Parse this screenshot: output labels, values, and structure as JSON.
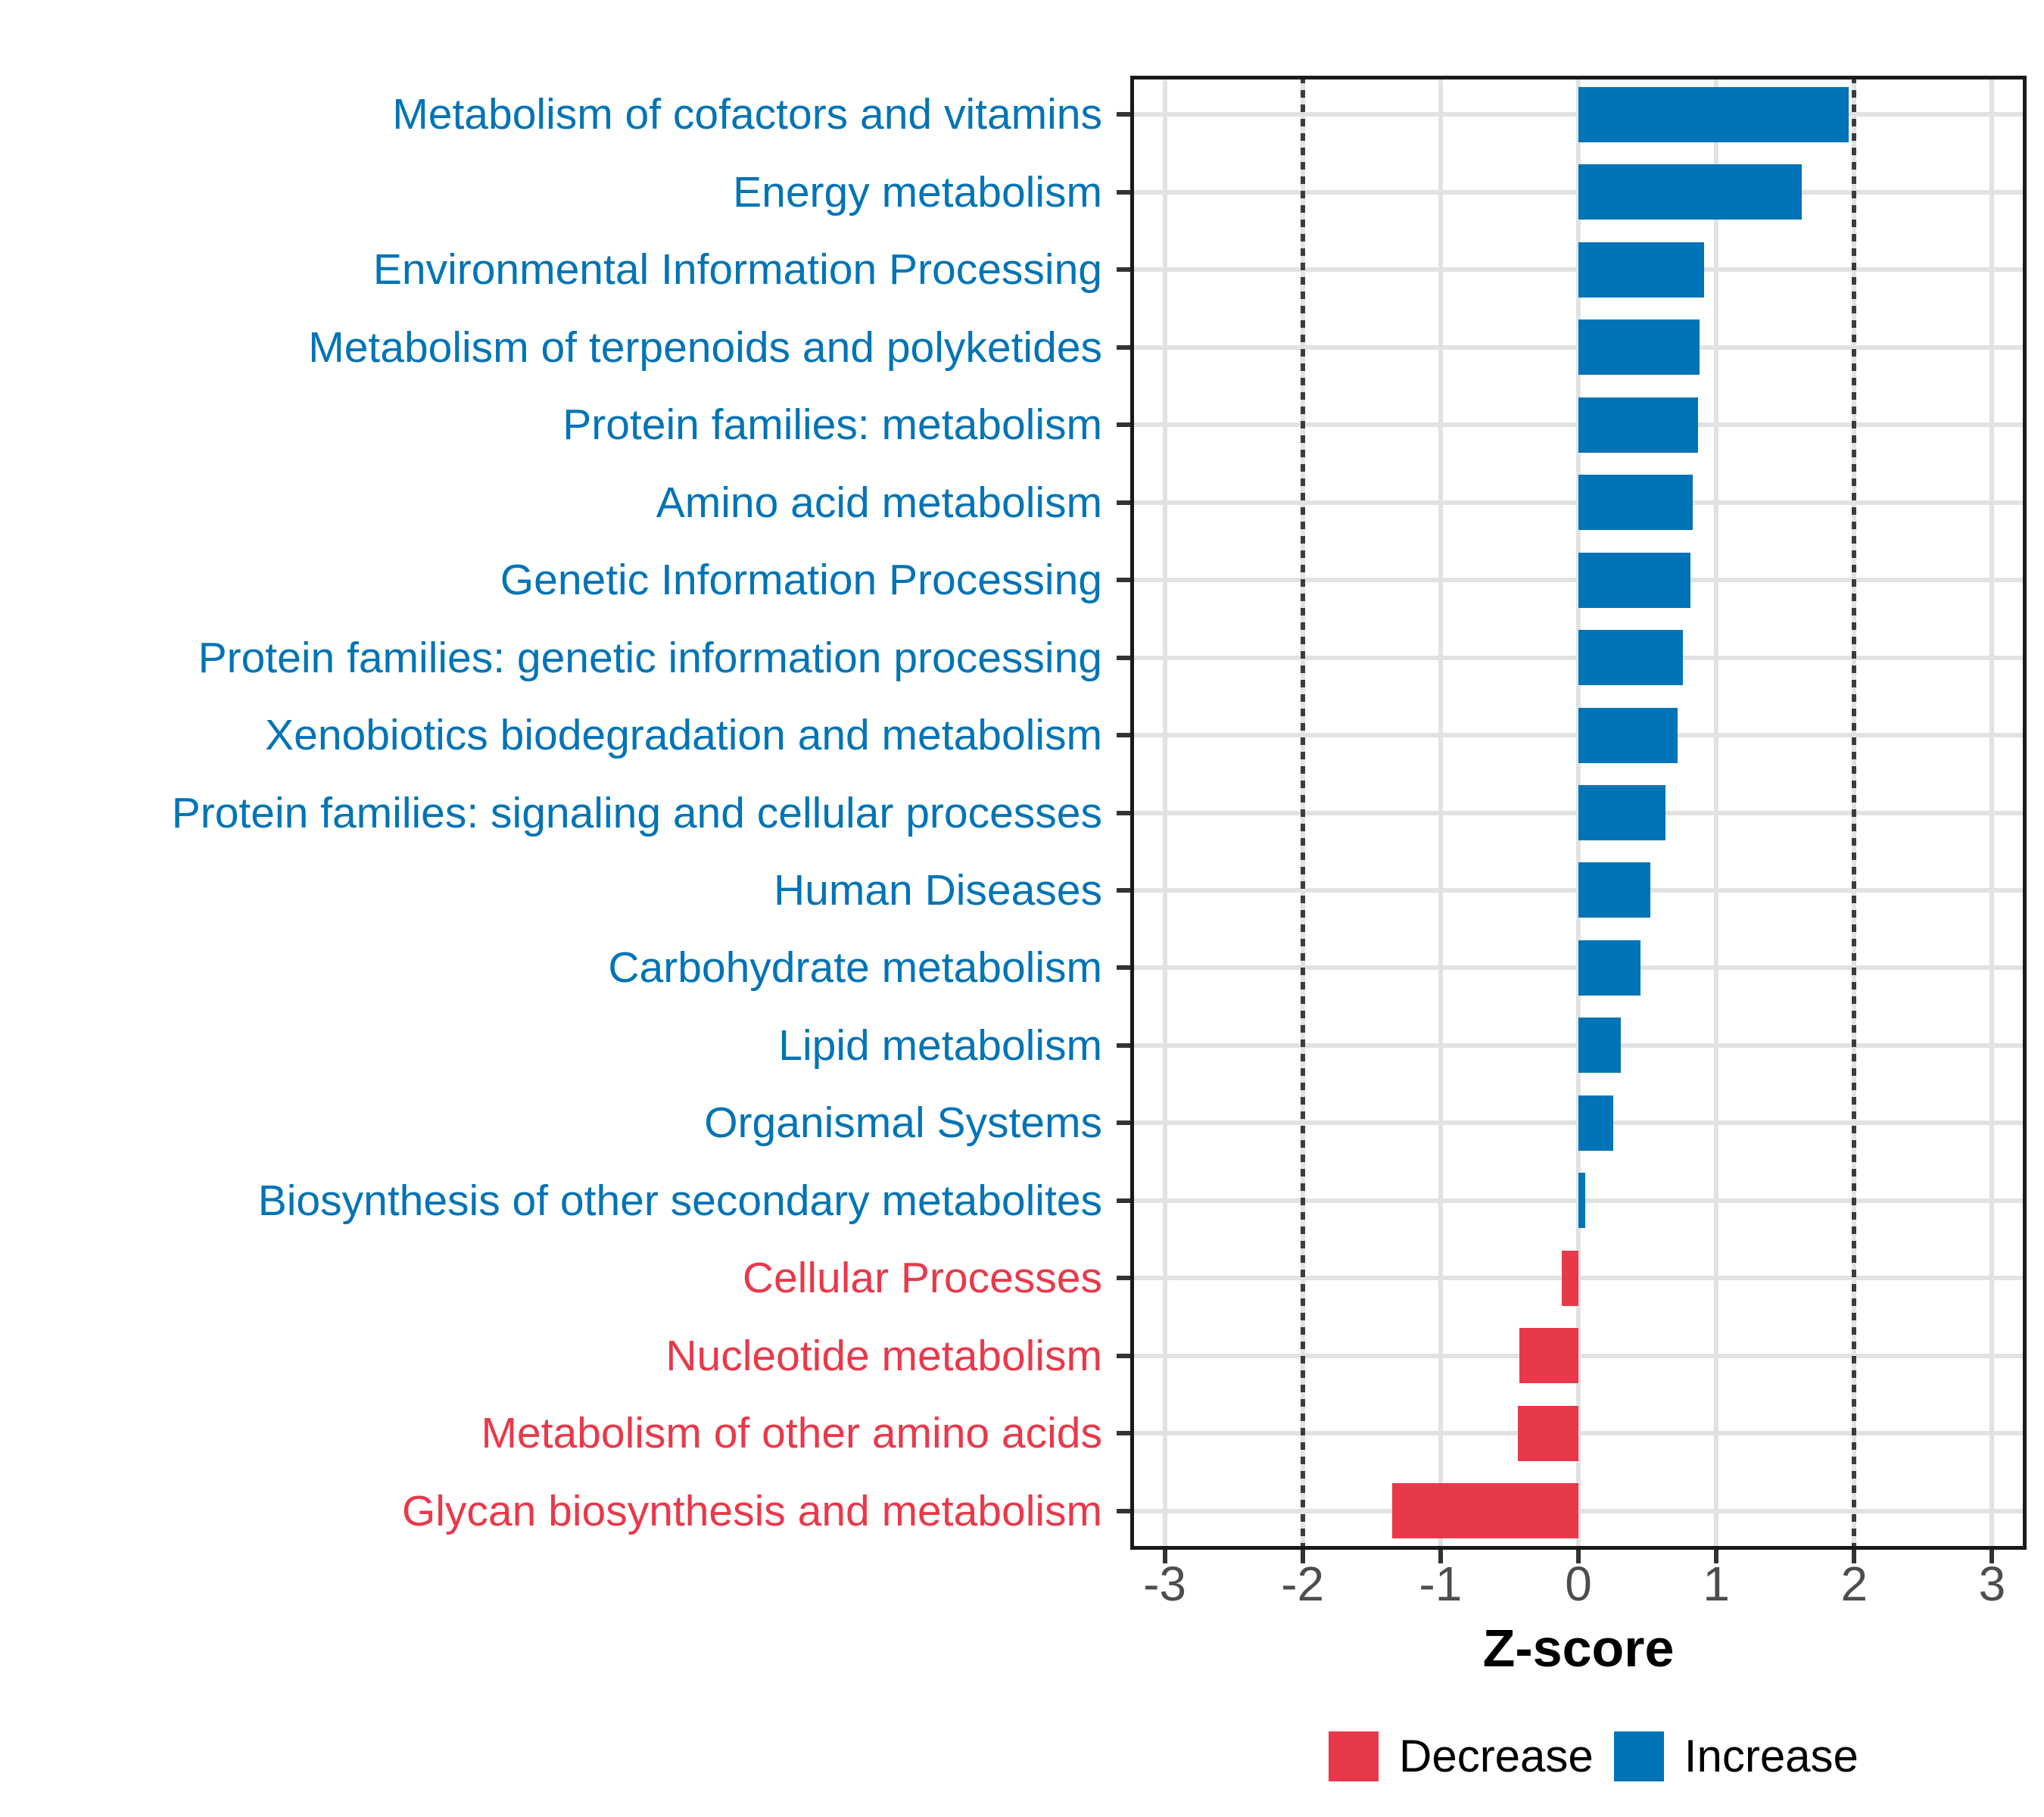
{
  "colors": {
    "increase": "#0074B6",
    "decrease": "#E8394A",
    "gridline": "#E2E2E2",
    "panel_border": "#1a1a1a",
    "threshold_line": "#3C3C3C",
    "axis_tick": "#333333",
    "axis_tick_label": "#4d4d4d"
  },
  "chart_data": {
    "type": "bar",
    "orientation": "horizontal",
    "title": "",
    "xlabel": "Z-score",
    "ylabel": "",
    "xlim": [
      -3.25,
      3.25
    ],
    "x_ticks": [
      -3,
      -2,
      -1,
      0,
      1,
      2,
      3
    ],
    "grid": true,
    "threshold_lines": [
      -2,
      2
    ],
    "legend_position": "bottom-right",
    "legend": [
      {
        "label": "Decrease",
        "color": "#E8394A"
      },
      {
        "label": "Increase",
        "color": "#0074B6"
      }
    ],
    "categories": [
      "Metabolism of cofactors and vitamins",
      "Energy metabolism",
      "Environmental Information Processing",
      "Metabolism of terpenoids and polyketides",
      "Protein families: metabolism",
      "Amino acid metabolism",
      "Genetic Information Processing",
      "Protein families: genetic information processing",
      "Xenobiotics biodegradation and metabolism",
      "Protein families: signaling and cellular processes",
      "Human Diseases",
      "Carbohydrate metabolism",
      "Lipid metabolism",
      "Organismal Systems",
      "Biosynthesis of other secondary metabolites",
      "Cellular Processes",
      "Nucleotide metabolism",
      "Metabolism of other amino acids",
      "Glycan biosynthesis and metabolism"
    ],
    "values": [
      1.96,
      1.62,
      0.91,
      0.88,
      0.87,
      0.83,
      0.81,
      0.76,
      0.72,
      0.63,
      0.52,
      0.45,
      0.31,
      0.25,
      0.05,
      -0.12,
      -0.43,
      -0.44,
      -1.35
    ],
    "groups": [
      "Increase",
      "Increase",
      "Increase",
      "Increase",
      "Increase",
      "Increase",
      "Increase",
      "Increase",
      "Increase",
      "Increase",
      "Increase",
      "Increase",
      "Increase",
      "Increase",
      "Increase",
      "Decrease",
      "Decrease",
      "Decrease",
      "Decrease"
    ]
  }
}
